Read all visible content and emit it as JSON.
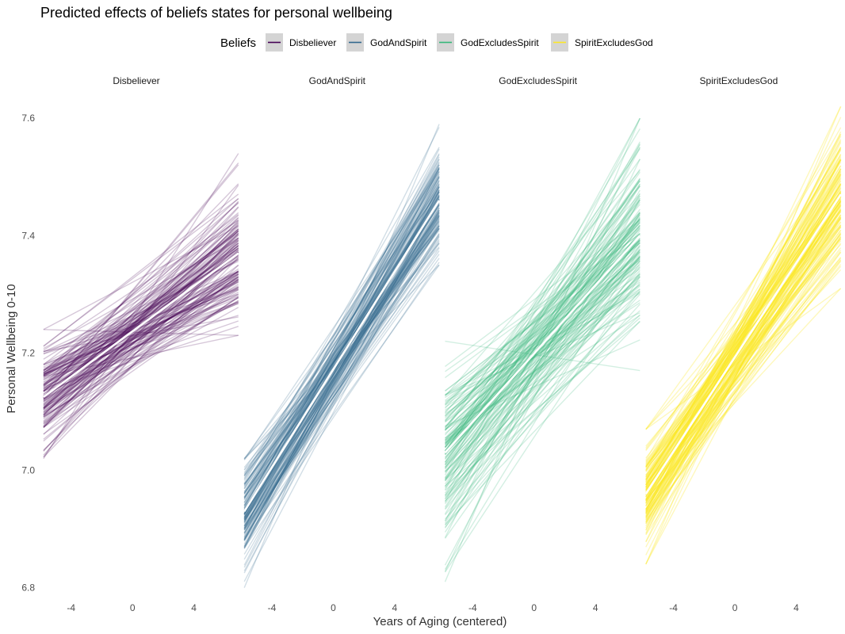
{
  "chart_data": {
    "type": "line",
    "title": "Predicted effects of beliefs states for personal wellbeing",
    "xlabel": "Years of Aging (centered)",
    "ylabel": "Personal Wellbeing 0-10",
    "xlim": [
      -6,
      6.5
    ],
    "ylim": [
      6.79,
      7.63
    ],
    "x_ticks": [
      -4,
      0,
      4
    ],
    "x_tick_labels": [
      "-4",
      "0",
      "4"
    ],
    "y_ticks": [
      6.8,
      7.0,
      7.2,
      7.4,
      7.6
    ],
    "y_tick_labels": [
      "6.8",
      "7.0",
      "7.2",
      "7.4",
      "7.6"
    ],
    "grid": false,
    "legend": {
      "title": "Beliefs",
      "position": "top",
      "entries": [
        "Disbeliever",
        "GodAndSpirit",
        "GodExcludesSpirit",
        "SpiritExcludesGod"
      ]
    },
    "facets": [
      "Disbeliever",
      "GodAndSpirit",
      "GodExcludesSpirit",
      "SpiritExcludesGod"
    ],
    "x_range": [
      -5.8,
      6.9
    ],
    "draws_per_panel": 150,
    "series": [
      {
        "name": "Disbeliever",
        "color": "#440154",
        "mean_start": 7.125,
        "mean_end": 7.37,
        "start_range": [
          7.02,
          7.24
        ],
        "end_range": [
          7.23,
          7.54
        ]
      },
      {
        "name": "GodAndSpirit",
        "color": "#31688E",
        "mean_start": 6.93,
        "mean_end": 7.46,
        "start_range": [
          6.8,
          7.02
        ],
        "end_range": [
          7.35,
          7.59
        ]
      },
      {
        "name": "GodExcludesSpirit",
        "color": "#35B779",
        "mean_start": 7.03,
        "mean_end": 7.4,
        "start_range": [
          6.81,
          7.22
        ],
        "end_range": [
          7.17,
          7.6
        ]
      },
      {
        "name": "SpiritExcludesGod",
        "color": "#FDE725",
        "mean_start": 6.96,
        "mean_end": 7.47,
        "start_range": [
          6.84,
          7.07
        ],
        "end_range": [
          7.31,
          7.62
        ]
      }
    ]
  }
}
